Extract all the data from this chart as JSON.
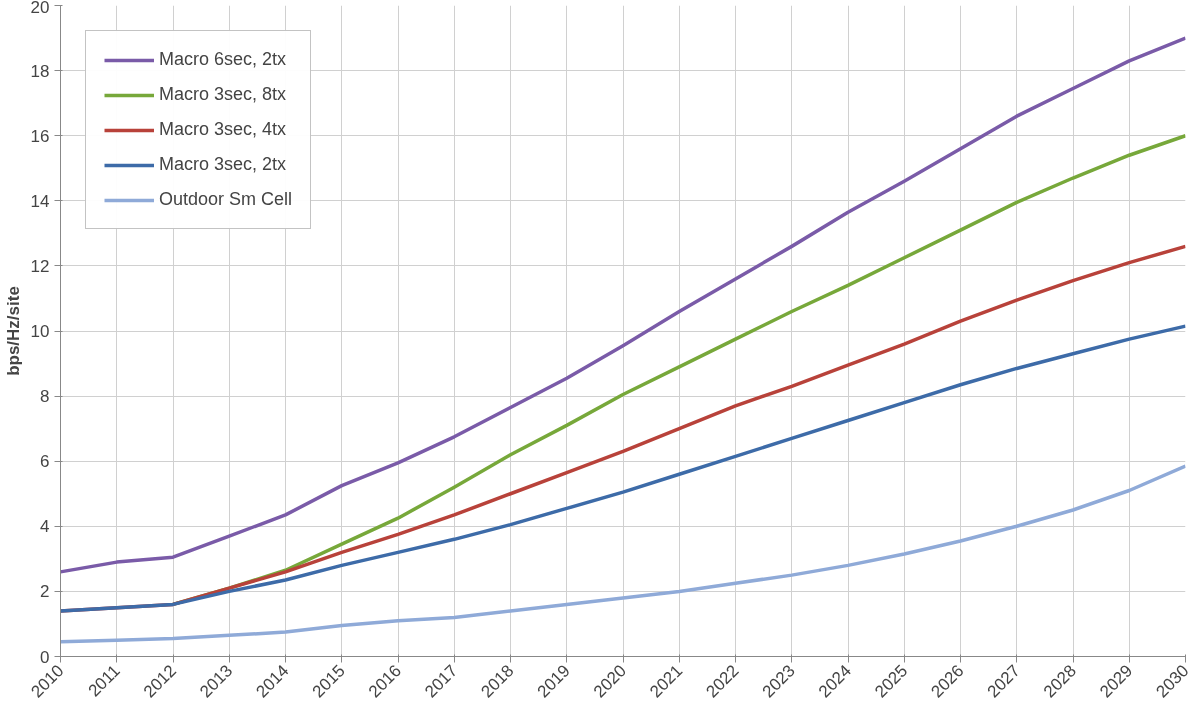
{
  "chart_data": {
    "type": "line",
    "ylabel": "bps/Hz/site",
    "x": [
      2010,
      2011,
      2012,
      2013,
      2014,
      2015,
      2016,
      2017,
      2018,
      2019,
      2020,
      2021,
      2022,
      2023,
      2024,
      2025,
      2026,
      2027,
      2028,
      2029,
      2030
    ],
    "xlim": [
      2010,
      2030
    ],
    "xticks": [
      2010,
      2011,
      2012,
      2013,
      2014,
      2015,
      2016,
      2017,
      2018,
      2019,
      2020,
      2021,
      2022,
      2023,
      2024,
      2025,
      2026,
      2027,
      2028,
      2029,
      2030
    ],
    "ylim": [
      0,
      20
    ],
    "yticks": [
      0,
      2,
      4,
      6,
      8,
      10,
      12,
      14,
      16,
      18,
      20
    ],
    "grid": true,
    "legend": "top left",
    "marker": "none",
    "line_style": "solid",
    "series": [
      {
        "name": "Macro 6sec, 2tx",
        "color": "#7a5ba8",
        "values": [
          2.6,
          2.9,
          3.05,
          3.7,
          4.35,
          5.25,
          5.95,
          6.75,
          7.65,
          8.55,
          9.55,
          10.6,
          11.6,
          12.6,
          13.65,
          14.6,
          15.6,
          16.6,
          17.45,
          18.3,
          19.0
        ]
      },
      {
        "name": "Macro 3sec, 8tx",
        "color": "#77a83a",
        "values": [
          null,
          null,
          1.6,
          2.1,
          2.65,
          3.45,
          4.25,
          5.2,
          6.2,
          7.1,
          8.05,
          8.9,
          9.75,
          10.6,
          11.4,
          12.25,
          13.1,
          13.95,
          14.7,
          15.4,
          16.0
        ]
      },
      {
        "name": "Macro 3sec, 4tx",
        "color": "#b8423a",
        "values": [
          1.4,
          1.5,
          1.6,
          2.1,
          2.6,
          3.2,
          3.75,
          4.35,
          5.0,
          5.65,
          6.3,
          7.0,
          7.7,
          8.3,
          8.95,
          9.6,
          10.3,
          10.95,
          11.55,
          12.1,
          12.6
        ]
      },
      {
        "name": "Macro 3sec, 2tx",
        "color": "#3d6ba8",
        "values": [
          1.4,
          1.5,
          1.6,
          2.0,
          2.35,
          2.8,
          3.2,
          3.6,
          4.05,
          4.55,
          5.05,
          5.6,
          6.15,
          6.7,
          7.25,
          7.8,
          8.35,
          8.85,
          9.3,
          9.75,
          10.15
        ]
      },
      {
        "name": "Outdoor Sm Cell",
        "color": "#8faad8",
        "values": [
          0.45,
          0.5,
          0.55,
          0.65,
          0.75,
          0.95,
          1.1,
          1.2,
          1.4,
          1.6,
          1.8,
          2.0,
          2.25,
          2.5,
          2.8,
          3.15,
          3.55,
          4.0,
          4.5,
          5.1,
          5.85
        ]
      }
    ]
  }
}
